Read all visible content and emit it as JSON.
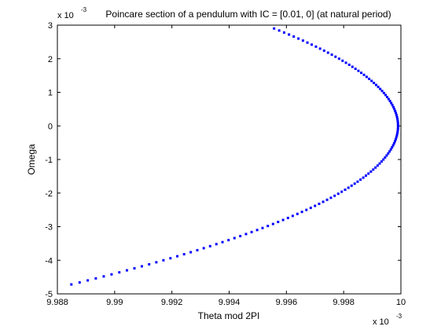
{
  "chart_data": {
    "type": "scatter",
    "title": "Poincare section of a pendulum with IC = [0.01, 0]  (at natural period)",
    "xlabel": "Theta mod 2PI",
    "ylabel": "Omega",
    "x_exponent": "x 10",
    "x_exponent_power": "-3",
    "y_exponent": "x 10",
    "y_exponent_power": "-3",
    "xlim": [
      9.988,
      10.0
    ],
    "ylim": [
      -5,
      3
    ],
    "xticks": [
      9.988,
      9.99,
      9.992,
      9.994,
      9.996,
      9.998,
      10
    ],
    "xtick_labels": [
      "9.988",
      "9.99",
      "9.992",
      "9.994",
      "9.996",
      "9.998",
      "10"
    ],
    "yticks": [
      -5,
      -4,
      -3,
      -2,
      -1,
      0,
      1,
      2,
      3
    ],
    "ytick_labels": [
      "-5",
      "-4",
      "-3",
      "-2",
      "-1",
      "0",
      "1",
      "2",
      "3"
    ],
    "grid": false,
    "marker": "point",
    "color": "#0000ff",
    "theta_peak": 9.9999,
    "omega_top": 2.9,
    "omega_bottom": -4.73,
    "omega_step": 0.06,
    "x_unit_scale": 0.001,
    "y_unit_scale": 0.001
  }
}
